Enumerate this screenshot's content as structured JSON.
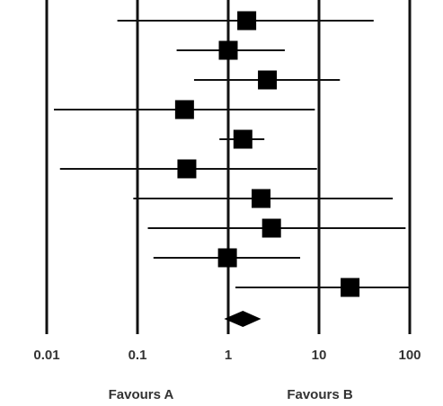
{
  "chart_data": {
    "type": "forest",
    "x_scale": "log",
    "xlim": [
      0.01,
      100
    ],
    "x_ticks": [
      {
        "value": 0.01,
        "label": "0.01"
      },
      {
        "value": 0.1,
        "label": "0.1"
      },
      {
        "value": 1,
        "label": "1"
      },
      {
        "value": 10,
        "label": "10"
      },
      {
        "value": 100,
        "label": "100"
      }
    ],
    "favours_left": "Favours A",
    "favours_right": "Favours B",
    "studies": [
      {
        "estimate": 1.6,
        "lower": 0.06,
        "upper": 40,
        "weight": 1.0
      },
      {
        "estimate": 1.0,
        "lower": 0.27,
        "upper": 4.2,
        "weight": 1.0
      },
      {
        "estimate": 2.7,
        "lower": 0.42,
        "upper": 17,
        "weight": 1.0
      },
      {
        "estimate": 0.33,
        "lower": 0.012,
        "upper": 9,
        "weight": 1.0
      },
      {
        "estimate": 1.45,
        "lower": 0.8,
        "upper": 2.5,
        "weight": 1.0
      },
      {
        "estimate": 0.35,
        "lower": 0.014,
        "upper": 9.5,
        "weight": 1.0
      },
      {
        "estimate": 2.3,
        "lower": 0.09,
        "upper": 65,
        "weight": 1.0
      },
      {
        "estimate": 3.0,
        "lower": 0.13,
        "upper": 90,
        "weight": 1.0
      },
      {
        "estimate": 0.98,
        "lower": 0.15,
        "upper": 6.2,
        "weight": 1.0
      },
      {
        "estimate": 22,
        "lower": 1.2,
        "upper": 100,
        "weight": 1.0
      }
    ],
    "pooled": {
      "estimate": 1.45,
      "lower": 0.9,
      "upper": 2.3
    },
    "grid": true,
    "colors": {
      "lines": "#111111",
      "markers": "#000000"
    }
  }
}
